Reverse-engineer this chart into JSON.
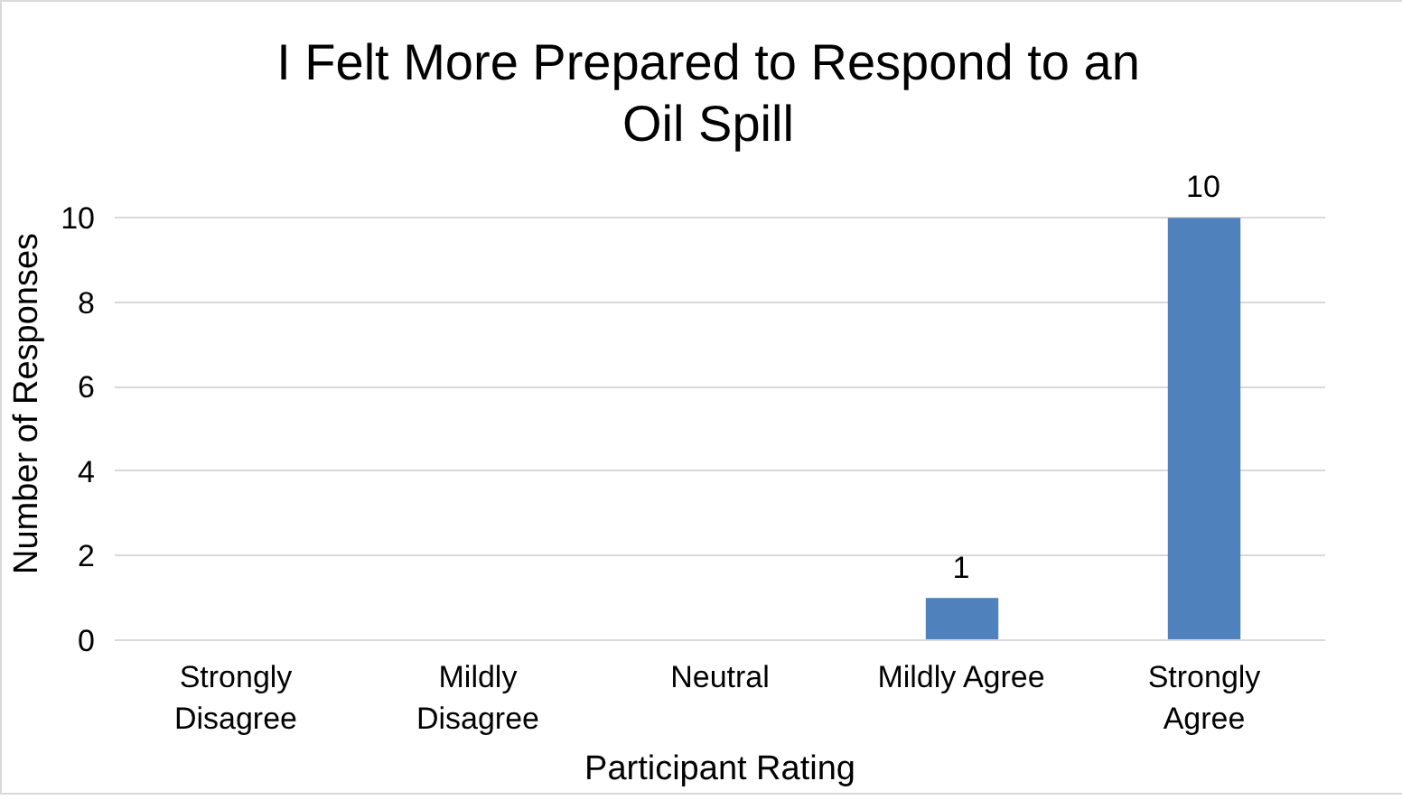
{
  "chart_data": {
    "type": "bar",
    "title": "I Felt More Prepared to Respond to an Oil Spill",
    "categories": [
      "Strongly\nDisagree",
      "Mildly\nDisagree",
      "Neutral",
      "Mildly Agree",
      "Strongly\nAgree"
    ],
    "values": [
      0,
      0,
      0,
      1,
      10
    ],
    "color": "#4f81bd",
    "value_labels": [
      null,
      null,
      null,
      "1",
      "10"
    ],
    "xlabel": "Participant Rating",
    "ylabel": "Number of Responses",
    "ylim": [
      0,
      10
    ],
    "yticks": [
      0,
      2,
      4,
      6,
      8,
      10
    ],
    "grid": "y"
  }
}
